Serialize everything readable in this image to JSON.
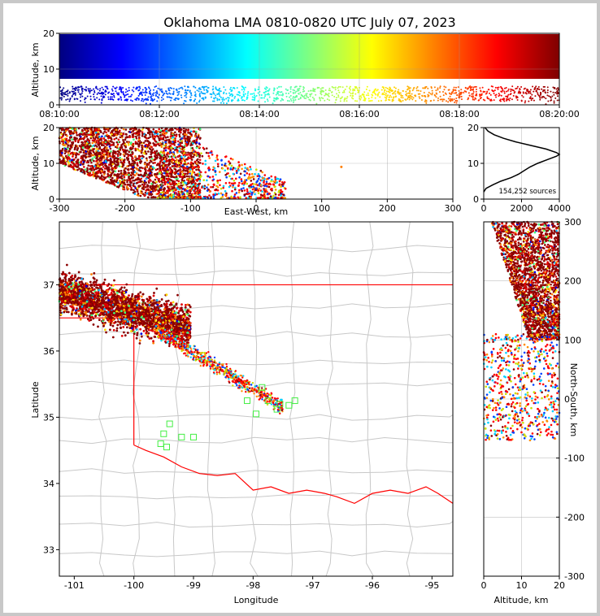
{
  "chart_data": [
    {
      "panel": "time-altitude",
      "type": "scatter",
      "title": "Oklahoma LMA 0810-0820 UTC July 07, 2023",
      "ylabel": "Altitude, km",
      "xlabel": "",
      "x_ticks": [
        "08:10:00",
        "08:12:00",
        "08:14:00",
        "08:16:00",
        "08:18:00",
        "08:20:00"
      ],
      "y_ticks": [
        0,
        10,
        20
      ],
      "ylim": [
        0,
        20
      ],
      "color_by": "time",
      "colormap": "jet",
      "grid": true
    },
    {
      "panel": "east-west-altitude",
      "type": "scatter",
      "xlabel": "East-West, km",
      "ylabel": "Altitude, km",
      "xlim": [
        -300,
        300
      ],
      "ylim": [
        0,
        20
      ],
      "x_ticks": [
        -300,
        -200,
        -100,
        0,
        100,
        200,
        300
      ],
      "y_ticks": [
        0,
        10,
        20
      ],
      "grid": true
    },
    {
      "panel": "altitude-histogram",
      "type": "line",
      "annotation": "154,252 sources",
      "xlim": [
        0,
        4000
      ],
      "ylim": [
        0,
        20
      ],
      "x_ticks": [
        0,
        2000,
        4000
      ],
      "y_ticks": [
        0,
        10,
        20
      ],
      "profile": {
        "altitude_km": [
          2,
          3,
          4,
          5,
          6,
          7,
          8,
          9,
          10,
          11,
          12,
          12.5,
          13,
          14,
          15,
          16,
          17,
          18,
          19,
          20
        ],
        "sources": [
          0,
          120,
          480,
          900,
          1450,
          1850,
          2150,
          2450,
          2850,
          3350,
          3850,
          4000,
          3850,
          3300,
          2500,
          1700,
          1050,
          550,
          230,
          60
        ]
      },
      "grid": true
    },
    {
      "panel": "plan-view",
      "type": "scatter",
      "xlabel": "Longitude",
      "ylabel": "Latitude",
      "xlim": [
        -101.25,
        -94.65
      ],
      "ylim": [
        32.6,
        37.95
      ],
      "x_ticks": [
        -101,
        -100,
        -99,
        -98,
        -97,
        -96,
        -95
      ],
      "y_ticks": [
        33,
        34,
        35,
        36,
        37
      ],
      "station_markers": [
        [
          -97.75,
          35.25
        ],
        [
          -97.85,
          35.45
        ],
        [
          -97.55,
          35.2
        ],
        [
          -98.1,
          35.25
        ],
        [
          -97.4,
          35.18
        ],
        [
          -97.95,
          35.05
        ],
        [
          -97.6,
          35.12
        ],
        [
          -99.5,
          34.75
        ],
        [
          -99.45,
          34.55
        ],
        [
          -99.2,
          34.7
        ],
        [
          -99.0,
          34.7
        ],
        [
          -99.4,
          34.9
        ],
        [
          -99.55,
          34.6
        ],
        [
          -97.3,
          35.25
        ]
      ],
      "grid": false
    },
    {
      "panel": "altitude-north-south",
      "type": "scatter",
      "xlabel": "Altitude, km",
      "ylabel": "North-South, km",
      "xlim": [
        0,
        20
      ],
      "ylim": [
        -300,
        300
      ],
      "x_ticks": [
        0,
        10,
        20
      ],
      "y_ticks": [
        -300,
        -200,
        -100,
        0,
        100,
        200,
        300
      ],
      "grid": true
    }
  ]
}
